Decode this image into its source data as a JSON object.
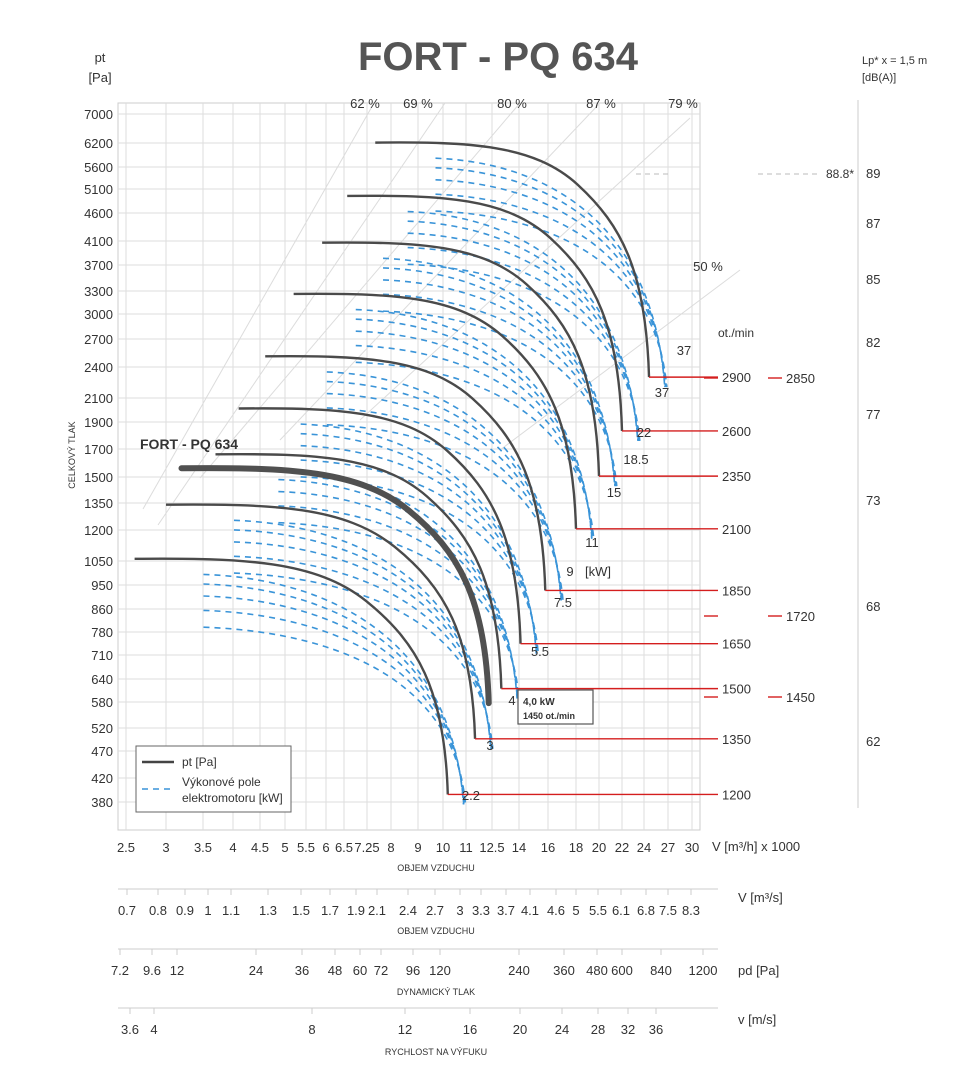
{
  "chart_data": {
    "type": "line",
    "title": "FORT - PQ 634",
    "curve_label": "FORT - PQ 634",
    "y_axis": {
      "unit_top": "pt",
      "unit_bottom": "[Pa]",
      "label": "CELKOVÝ TLAK",
      "ticks": [
        380,
        420,
        470,
        520,
        580,
        640,
        710,
        780,
        860,
        950,
        1050,
        1200,
        1350,
        1500,
        1700,
        1900,
        2100,
        2400,
        2700,
        3000,
        3300,
        3700,
        4100,
        4600,
        5100,
        5600,
        6200,
        7000
      ]
    },
    "x_axis": {
      "unit": "V [m³/h]  x 1000",
      "label": "OBJEM VZDUCHU",
      "ticks": [
        "2.5",
        "3",
        "3.5",
        "4",
        "4.5",
        "5",
        "5.5",
        "6",
        "6.5",
        "7.25",
        "8",
        "9",
        "10",
        "11",
        "12.5",
        "14",
        "16",
        "18",
        "20",
        "22",
        "24",
        "27",
        "30"
      ]
    },
    "right_axis": {
      "unit_top": "Lp* x = 1,5 m",
      "unit_bottom": "[dB(A)]",
      "ticks": [
        "89",
        "87",
        "85",
        "82",
        "77",
        "73",
        "68",
        "62"
      ],
      "marker": "88.8*"
    },
    "efficiency_labels": [
      "62 %",
      "69 %",
      "80 %",
      "87 %",
      "79 %",
      "50 %"
    ],
    "rpm_header": "ot./min",
    "series": [
      {
        "rpm": "1200",
        "pressure": 1060,
        "flow_start": 2.6,
        "flow_end": 10.2
      },
      {
        "rpm": "1350",
        "pressure": 1340,
        "flow_start": 3.0,
        "flow_end": 11.5
      },
      {
        "rpm": "1450",
        "pressure": 1560,
        "flow_start": 3.2,
        "flow_end": 12.3
      },
      {
        "rpm": "1500",
        "pressure": 1660,
        "flow_start": 3.7,
        "flow_end": 13.0
      },
      {
        "rpm": "1650",
        "pressure": 2010,
        "flow_start": 4.1,
        "flow_end": 14.1
      },
      {
        "rpm": "1850",
        "pressure": 2510,
        "flow_start": 4.6,
        "flow_end": 15.8
      },
      {
        "rpm": "2100",
        "pressure": 3260,
        "flow_start": 5.2,
        "flow_end": 18.0
      },
      {
        "rpm": "2350",
        "pressure": 4070,
        "flow_start": 5.9,
        "flow_end": 20.0
      },
      {
        "rpm": "2600",
        "pressure": 4950,
        "flow_start": 6.6,
        "flow_end": 22.0
      },
      {
        "rpm": "2900",
        "pressure": 6210,
        "flow_start": 7.5,
        "flow_end": 24.6
      }
    ],
    "selected_rpm": "1450",
    "rpm_labels": [
      "2900",
      "2600",
      "2350",
      "2100",
      "1850",
      "1650",
      "1500",
      "1350",
      "1200"
    ],
    "rpm_side_labels": [
      "2850",
      "1720",
      "1450"
    ],
    "motor_power_labels": [
      "37",
      "37",
      "22",
      "18.5",
      "15",
      "11",
      "9",
      "[kW]",
      "7.5",
      "5.5",
      "4",
      "3",
      "2.2"
    ],
    "callout": {
      "line1": "4,0 kW",
      "line2": "1450 ot./min"
    },
    "legend": {
      "item1": "pt [Pa]",
      "item2_line1": "Výkonové pole",
      "item2_line2": "elektromotoru  [kW]"
    }
  },
  "scales": [
    {
      "unit": "V  [m³/s]",
      "label": "OBJEM VZDUCHU",
      "ticks": [
        "0.7",
        "0.8",
        "0.9",
        "1",
        "1.1",
        "1.3",
        "1.5",
        "1.7",
        "1.9",
        "2.1",
        "2.4",
        "2.7",
        "3",
        "3.3",
        "3.7",
        "4.1",
        "4.6",
        "5",
        "5.5",
        "6.1",
        "6.8",
        "7.5",
        "8.3"
      ]
    },
    {
      "unit": "pd  [Pa]",
      "label": "DYNAMICKÝ TLAK",
      "ticks": [
        "7.2",
        "9.6",
        "12",
        "24",
        "36",
        "48",
        "60",
        "72",
        "96",
        "120",
        "240",
        "360",
        "480",
        "600",
        "840",
        "1200"
      ]
    },
    {
      "unit": "v  [m/s]",
      "label": "RYCHLOST NA VÝFUKU",
      "ticks": [
        "3.6",
        "4",
        "8",
        "12",
        "16",
        "20",
        "24",
        "28",
        "32",
        "36"
      ]
    }
  ]
}
